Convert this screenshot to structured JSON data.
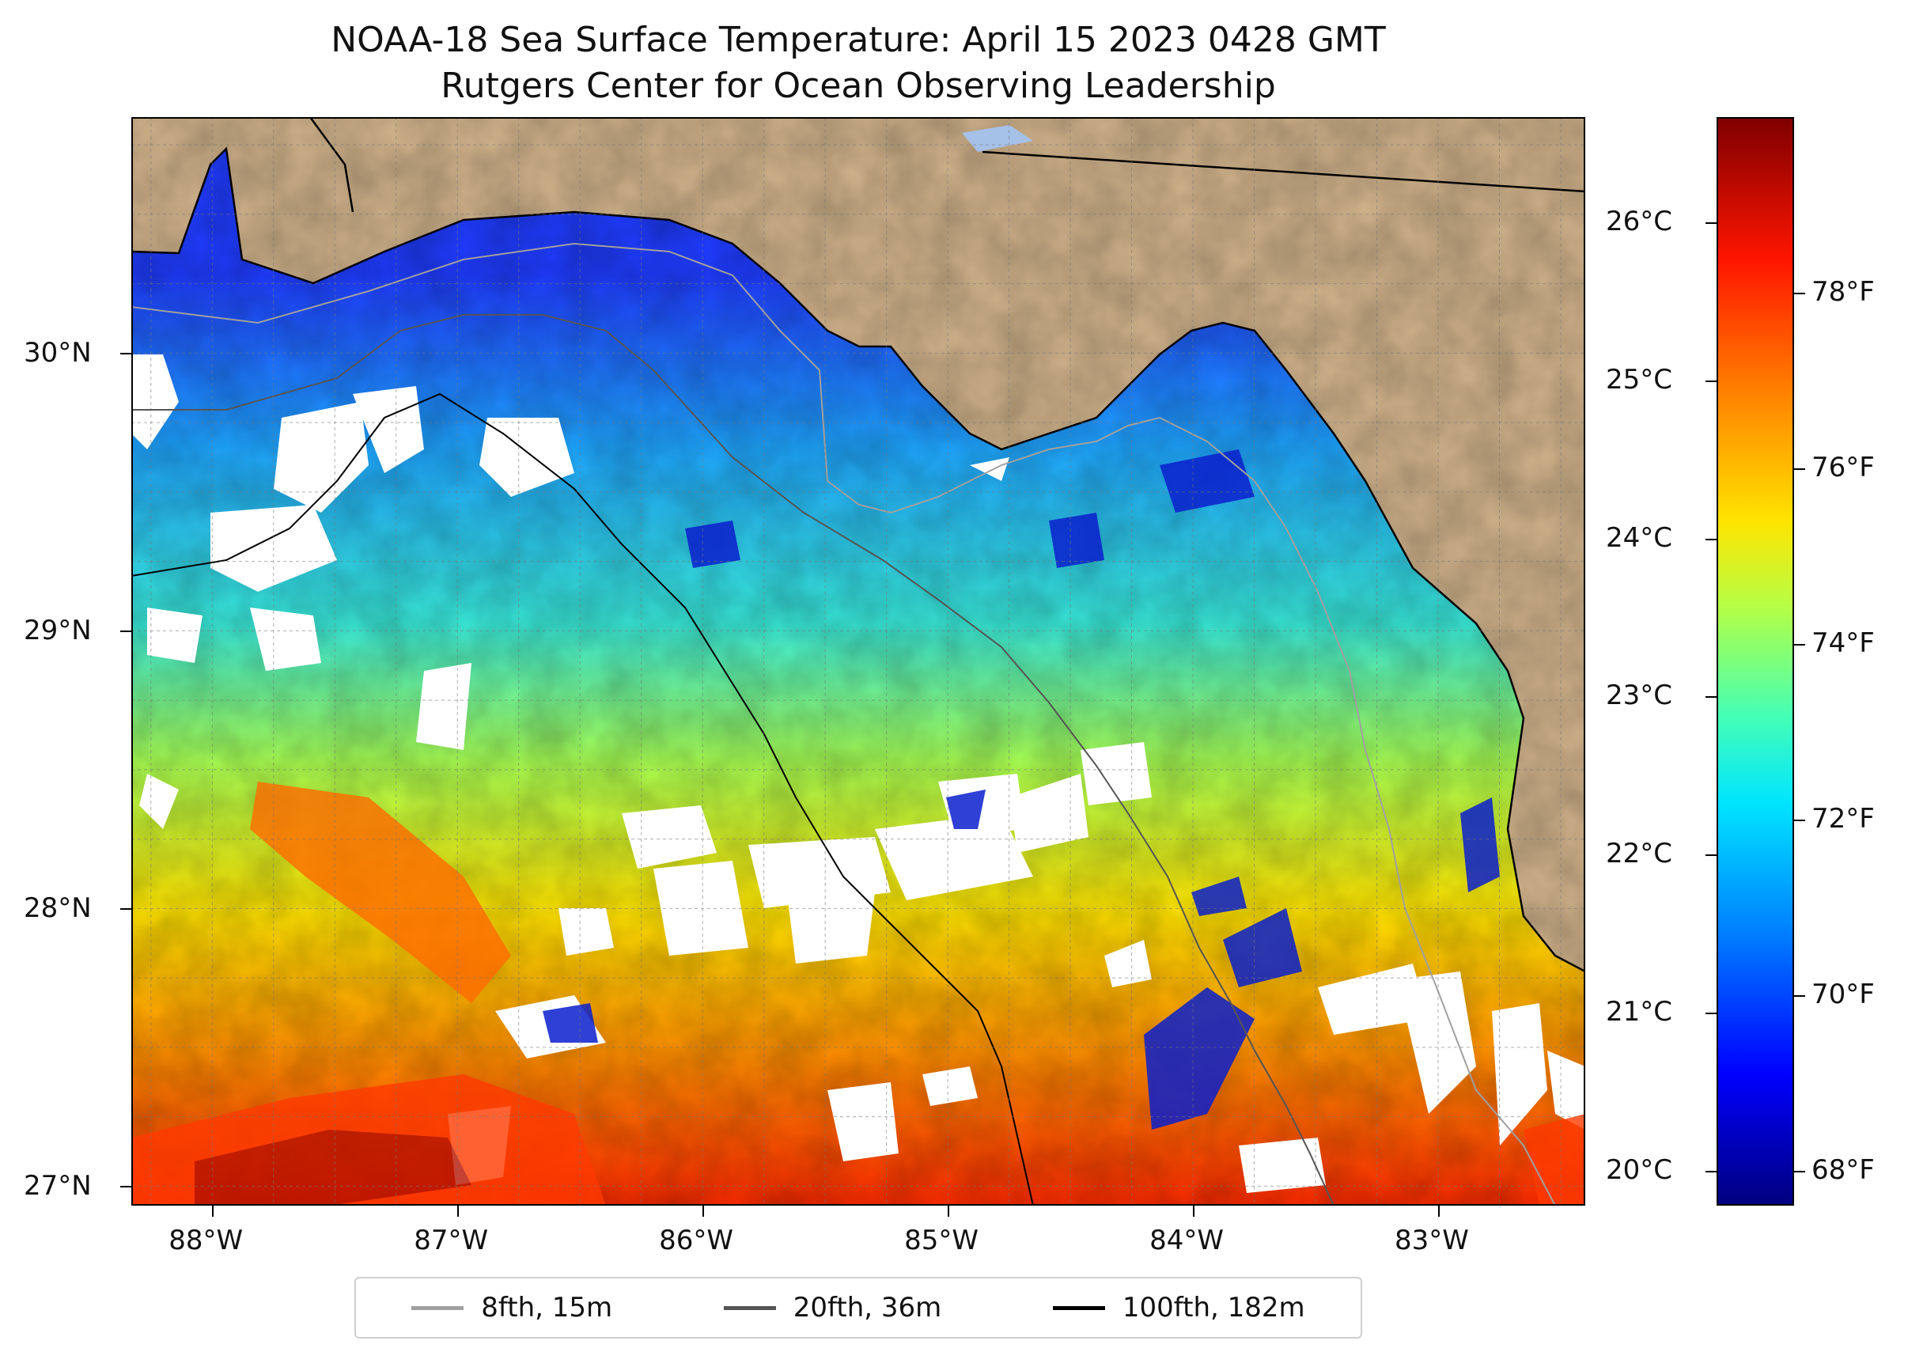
{
  "title": {
    "line1": "NOAA-18 Sea Surface Temperature: April 15 2023 0428 GMT",
    "line2": "Rutgers Center for Ocean Observing Leadership"
  },
  "map": {
    "lon_range": [
      -88.33,
      -82.4
    ],
    "lat_range": [
      26.93,
      30.85
    ],
    "lat_ticks": [
      {
        "value": 27,
        "label": "27°N"
      },
      {
        "value": 28,
        "label": "28°N"
      },
      {
        "value": 29,
        "label": "29°N"
      },
      {
        "value": 30,
        "label": "30°N"
      }
    ],
    "lon_ticks": [
      {
        "value": -88,
        "label": "88°W"
      },
      {
        "value": -87,
        "label": "87°W"
      },
      {
        "value": -86,
        "label": "86°W"
      },
      {
        "value": -85,
        "label": "85°W"
      },
      {
        "value": -84,
        "label": "84°W"
      },
      {
        "value": -83,
        "label": "83°W"
      }
    ],
    "land_color": "#d2b48c",
    "ocean_gradient": [
      "#1f3cff",
      "#1ea4ff",
      "#39e9d8",
      "#a8ff52",
      "#ffe400",
      "#ff8c00",
      "#ff2a00"
    ],
    "gridlines": true
  },
  "colorbar": {
    "celsius_ticks": [
      {
        "value": 20,
        "label": "20°C"
      },
      {
        "value": 21,
        "label": "21°C"
      },
      {
        "value": 22,
        "label": "22°C"
      },
      {
        "value": 23,
        "label": "23°C"
      },
      {
        "value": 24,
        "label": "24°C"
      },
      {
        "value": 25,
        "label": "25°C"
      },
      {
        "value": 26,
        "label": "26°C"
      }
    ],
    "fahrenheit_ticks": [
      {
        "value": 68,
        "label": "68°F"
      },
      {
        "value": 70,
        "label": "70°F"
      },
      {
        "value": 72,
        "label": "72°F"
      },
      {
        "value": 74,
        "label": "74°F"
      },
      {
        "value": 76,
        "label": "76°F"
      },
      {
        "value": 78,
        "label": "78°F"
      }
    ],
    "range_f": [
      67.6,
      80.0
    ],
    "colormap": "jet"
  },
  "legend": {
    "items": [
      {
        "label": "8fth, 15m",
        "color": "#a0a0a0"
      },
      {
        "label": "20fth, 36m",
        "color": "#555555"
      },
      {
        "label": "100fth, 182m",
        "color": "#000000"
      }
    ]
  }
}
